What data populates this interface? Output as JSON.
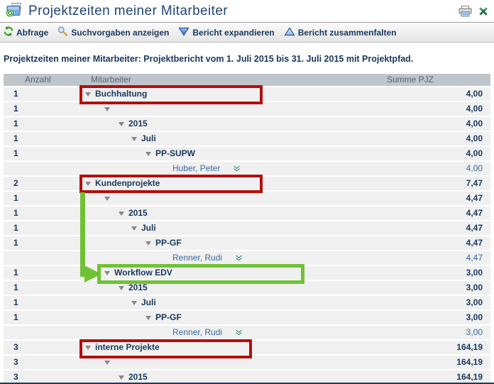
{
  "header": {
    "title": "Projektzeiten meiner Mitarbeiter",
    "actions": {
      "print": "Drucken",
      "excel": "Excel-Export"
    }
  },
  "toolbar": {
    "items": [
      {
        "icon": "refresh-icon",
        "label": "Abfrage"
      },
      {
        "icon": "magnifier-icon",
        "label": "Suchvorgaben anzeigen"
      },
      {
        "icon": "triangle-down-icon",
        "label": "Bericht expandieren"
      },
      {
        "icon": "triangle-up-icon",
        "label": "Bericht zusammenfalten"
      }
    ]
  },
  "subtitle": "Projektzeiten meiner Mitarbeiter: Projektbericht vom 1. Juli 2015 bis 31. Juli 2015 mit Projektpfad.",
  "table": {
    "columns": [
      "Anzahl",
      "Mitarbeiter",
      "Summe PJZ"
    ],
    "rows": [
      {
        "anzahl": "1",
        "level": 1,
        "label": "Buchhaltung",
        "triangle": true,
        "chevron": false,
        "style": "group",
        "value": "4,00"
      },
      {
        "anzahl": "1",
        "level": 2,
        "label": "",
        "triangle": true,
        "chevron": false,
        "style": "group",
        "value": "4,00"
      },
      {
        "anzahl": "1",
        "level": 3,
        "label": "2015",
        "triangle": true,
        "chevron": false,
        "style": "group",
        "value": "4,00"
      },
      {
        "anzahl": "1",
        "level": 4,
        "label": "Juli",
        "triangle": true,
        "chevron": false,
        "style": "group",
        "value": "4,00"
      },
      {
        "anzahl": "1",
        "level": 5,
        "label": "PP-SUPW",
        "triangle": true,
        "chevron": false,
        "style": "group",
        "value": "4,00"
      },
      {
        "anzahl": "",
        "level": 6,
        "label": "Huber, Peter",
        "triangle": false,
        "chevron": true,
        "style": "person",
        "value": "4,00"
      },
      {
        "anzahl": "2",
        "level": 1,
        "label": "Kundenprojekte",
        "triangle": true,
        "chevron": false,
        "style": "group",
        "value": "7,47"
      },
      {
        "anzahl": "1",
        "level": 2,
        "label": "",
        "triangle": true,
        "chevron": false,
        "style": "group",
        "value": "4,47"
      },
      {
        "anzahl": "1",
        "level": 3,
        "label": "2015",
        "triangle": true,
        "chevron": false,
        "style": "group",
        "value": "4,47"
      },
      {
        "anzahl": "1",
        "level": 4,
        "label": "Juli",
        "triangle": true,
        "chevron": false,
        "style": "group",
        "value": "4,47"
      },
      {
        "anzahl": "1",
        "level": 5,
        "label": "PP-GF",
        "triangle": true,
        "chevron": false,
        "style": "group",
        "value": "4,47"
      },
      {
        "anzahl": "",
        "level": 6,
        "label": "Renner, Rudi",
        "triangle": false,
        "chevron": true,
        "style": "person",
        "value": "4,47"
      },
      {
        "anzahl": "1",
        "level": 2,
        "label": "Workflow EDV",
        "triangle": true,
        "chevron": false,
        "style": "group",
        "value": "3,00"
      },
      {
        "anzahl": "1",
        "level": 3,
        "label": "2015",
        "triangle": true,
        "chevron": false,
        "style": "group",
        "value": "3,00"
      },
      {
        "anzahl": "1",
        "level": 4,
        "label": "Juli",
        "triangle": true,
        "chevron": false,
        "style": "group",
        "value": "3,00"
      },
      {
        "anzahl": "1",
        "level": 5,
        "label": "PP-GF",
        "triangle": true,
        "chevron": false,
        "style": "group",
        "value": "3,00"
      },
      {
        "anzahl": "",
        "level": 6,
        "label": "Renner, Rudi",
        "triangle": false,
        "chevron": true,
        "style": "person",
        "value": "3,00"
      },
      {
        "anzahl": "3",
        "level": 1,
        "label": "interne Projekte",
        "triangle": true,
        "chevron": false,
        "style": "group",
        "value": "164,19"
      },
      {
        "anzahl": "3",
        "level": 2,
        "label": "",
        "triangle": true,
        "chevron": false,
        "style": "group",
        "value": "164,19"
      },
      {
        "anzahl": "3",
        "level": 3,
        "label": "2015",
        "triangle": true,
        "chevron": false,
        "style": "group",
        "value": "164,19"
      }
    ]
  },
  "colors": {
    "annotation_red": "#b50d0d",
    "annotation_green": "#70c235",
    "navy_text": "#17375d",
    "person_text": "#34699c",
    "row_bg": "#f0f0f0",
    "header_bg": "#bec6cb"
  }
}
